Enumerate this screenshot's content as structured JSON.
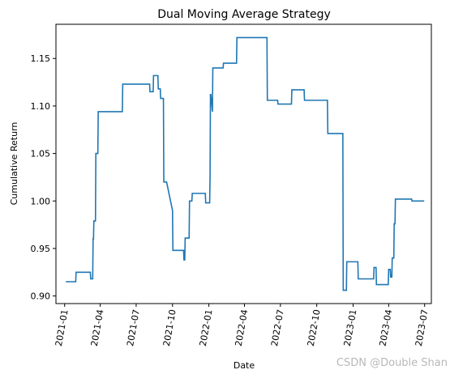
{
  "chart_data": {
    "type": "line",
    "title": "Dual Moving Average Strategy",
    "xlabel": "Date",
    "ylabel": "Cumulative Return",
    "xlim": [
      "2020-12-10",
      "2023-07-18"
    ],
    "ylim": [
      0.892,
      1.186
    ],
    "x_ticks": [
      "2021-01",
      "2021-04",
      "2021-07",
      "2021-10",
      "2022-01",
      "2022-04",
      "2022-07",
      "2022-10",
      "2023-01",
      "2023-04",
      "2023-07"
    ],
    "y_ticks": [
      0.9,
      0.95,
      1.0,
      1.05,
      1.1,
      1.15
    ],
    "y_tick_labels": [
      "0.90",
      "0.95",
      "1.00",
      "1.05",
      "1.10",
      "1.15"
    ],
    "grid": false,
    "line_color": "#1f77b4",
    "series": [
      {
        "x": [
          "2021-01-04",
          "2021-01-29",
          "2021-01-30",
          "2021-03-07",
          "2021-03-08",
          "2021-03-13",
          "2021-03-14",
          "2021-03-15",
          "2021-03-16",
          "2021-03-20",
          "2021-03-21",
          "2021-03-26",
          "2021-03-27",
          "2021-04-01",
          "2021-05-27",
          "2021-05-28",
          "2021-08-04",
          "2021-08-05",
          "2021-08-13",
          "2021-08-14",
          "2021-08-25",
          "2021-08-26",
          "2021-08-31",
          "2021-09-01",
          "2021-09-08",
          "2021-09-09",
          "2021-09-16",
          "2021-10-01",
          "2021-10-02",
          "2021-10-13",
          "2021-10-29",
          "2021-10-30",
          "2021-11-01",
          "2021-11-02",
          "2021-11-12",
          "2021-11-13",
          "2021-11-19",
          "2021-11-20",
          "2021-11-25",
          "2021-11-26",
          "2021-12-23",
          "2021-12-24",
          "2022-01-03",
          "2022-01-04",
          "2022-01-05",
          "2022-01-06",
          "2022-01-10",
          "2022-01-11",
          "2022-01-14",
          "2022-01-15",
          "2022-02-06",
          "2022-02-07",
          "2022-03-12",
          "2022-03-13",
          "2022-05-28",
          "2022-05-29",
          "2022-06-24",
          "2022-06-25",
          "2022-07-29",
          "2022-07-30",
          "2022-08-30",
          "2022-08-31",
          "2022-10-28",
          "2022-10-29",
          "2022-12-06",
          "2022-12-07",
          "2022-12-15",
          "2022-12-16",
          "2023-01-13",
          "2023-01-14",
          "2023-02-22",
          "2023-02-23",
          "2023-02-28",
          "2023-03-01",
          "2023-03-31",
          "2023-04-01",
          "2023-04-05",
          "2023-04-06",
          "2023-04-09",
          "2023-04-10",
          "2023-04-14",
          "2023-04-15",
          "2023-04-17",
          "2023-04-18",
          "2023-04-25",
          "2023-04-26",
          "2023-05-29",
          "2023-05-30",
          "2023-06-30"
        ],
        "y": [
          0.915,
          0.915,
          0.925,
          0.925,
          0.918,
          0.918,
          0.96,
          0.96,
          0.979,
          0.979,
          1.05,
          1.05,
          1.094,
          1.094,
          1.094,
          1.123,
          1.123,
          1.115,
          1.115,
          1.132,
          1.132,
          1.118,
          1.118,
          1.108,
          1.108,
          1.02,
          1.02,
          0.99,
          0.948,
          0.948,
          0.948,
          0.938,
          0.938,
          0.961,
          0.961,
          1.0,
          1.0,
          1.008,
          1.008,
          1.008,
          1.008,
          0.998,
          0.998,
          1.025,
          1.112,
          1.112,
          1.094,
          1.14,
          1.14,
          1.14,
          1.14,
          1.145,
          1.145,
          1.172,
          1.172,
          1.106,
          1.106,
          1.102,
          1.102,
          1.117,
          1.117,
          1.106,
          1.106,
          1.071,
          1.071,
          0.906,
          0.906,
          0.936,
          0.936,
          0.918,
          0.918,
          0.93,
          0.93,
          0.912,
          0.912,
          0.928,
          0.928,
          0.92,
          0.92,
          0.94,
          0.94,
          0.976,
          0.976,
          1.002,
          1.002,
          1.002,
          1.002,
          1.0,
          1.0
        ]
      }
    ]
  },
  "watermark": "CSDN @Double Shan"
}
